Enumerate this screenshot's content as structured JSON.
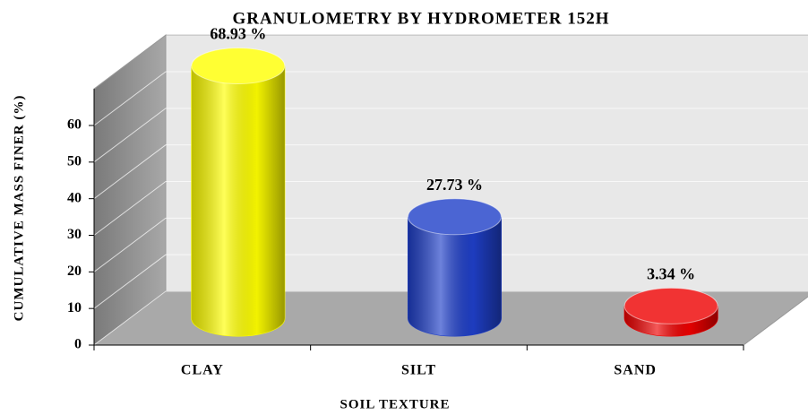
{
  "chart_data": {
    "type": "bar3d",
    "title": "GRANULOMETRY  BY HYDROMETER 152H",
    "xlabel": "SOIL TEXTURE",
    "ylabel": "CUMULATIVE  MASS  FINER  (%)",
    "categories": [
      "CLAY",
      "SILT",
      "SAND"
    ],
    "values": [
      68.93,
      27.73,
      3.34
    ],
    "value_labels": [
      "68.93 %",
      "27.73 %",
      "3.34 %"
    ],
    "colors": [
      "#ffff00",
      "#1f3fc8",
      "#ee0000"
    ],
    "ylim": [
      0,
      70
    ],
    "yticks": [
      0,
      10,
      20,
      30,
      40,
      50,
      60
    ],
    "grid": true
  }
}
